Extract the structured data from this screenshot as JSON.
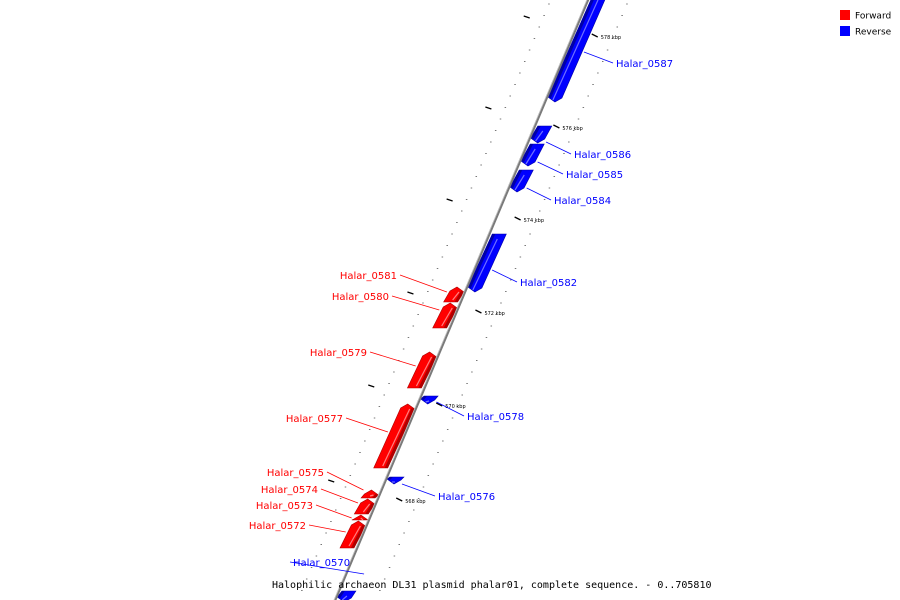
{
  "colors": {
    "forward": "#ff0000",
    "reverse": "#0000ff",
    "backbone": "#7a7a7a"
  },
  "legend": [
    {
      "label": "Forward",
      "color": "#ff0000"
    },
    {
      "label": "Reverse",
      "color": "#0000ff"
    }
  ],
  "caption": "Halophilic archaeon DL31 plasmid phalar01, complete sequence. - 0..705810",
  "ticks": [
    "578 kbp",
    "576 kbp",
    "574 kbp",
    "572 kbp",
    "570 kbp",
    "568 kbp"
  ],
  "genes": [
    {
      "name": "Halar_0587",
      "strand": "reverse"
    },
    {
      "name": "Halar_0586",
      "strand": "reverse"
    },
    {
      "name": "Halar_0585",
      "strand": "reverse"
    },
    {
      "name": "Halar_0584",
      "strand": "reverse"
    },
    {
      "name": "Halar_0582",
      "strand": "reverse"
    },
    {
      "name": "Halar_0581",
      "strand": "forward"
    },
    {
      "name": "Halar_0580",
      "strand": "forward"
    },
    {
      "name": "Halar_0579",
      "strand": "forward"
    },
    {
      "name": "Halar_0578",
      "strand": "reverse"
    },
    {
      "name": "Halar_0577",
      "strand": "forward"
    },
    {
      "name": "Halar_0576",
      "strand": "reverse"
    },
    {
      "name": "Halar_0575",
      "strand": "forward"
    },
    {
      "name": "Halar_0574",
      "strand": "forward"
    },
    {
      "name": "Halar_0573",
      "strand": "forward"
    },
    {
      "name": "Halar_0572",
      "strand": "forward"
    },
    {
      "name": "Halar_0570",
      "strand": "reverse"
    }
  ]
}
